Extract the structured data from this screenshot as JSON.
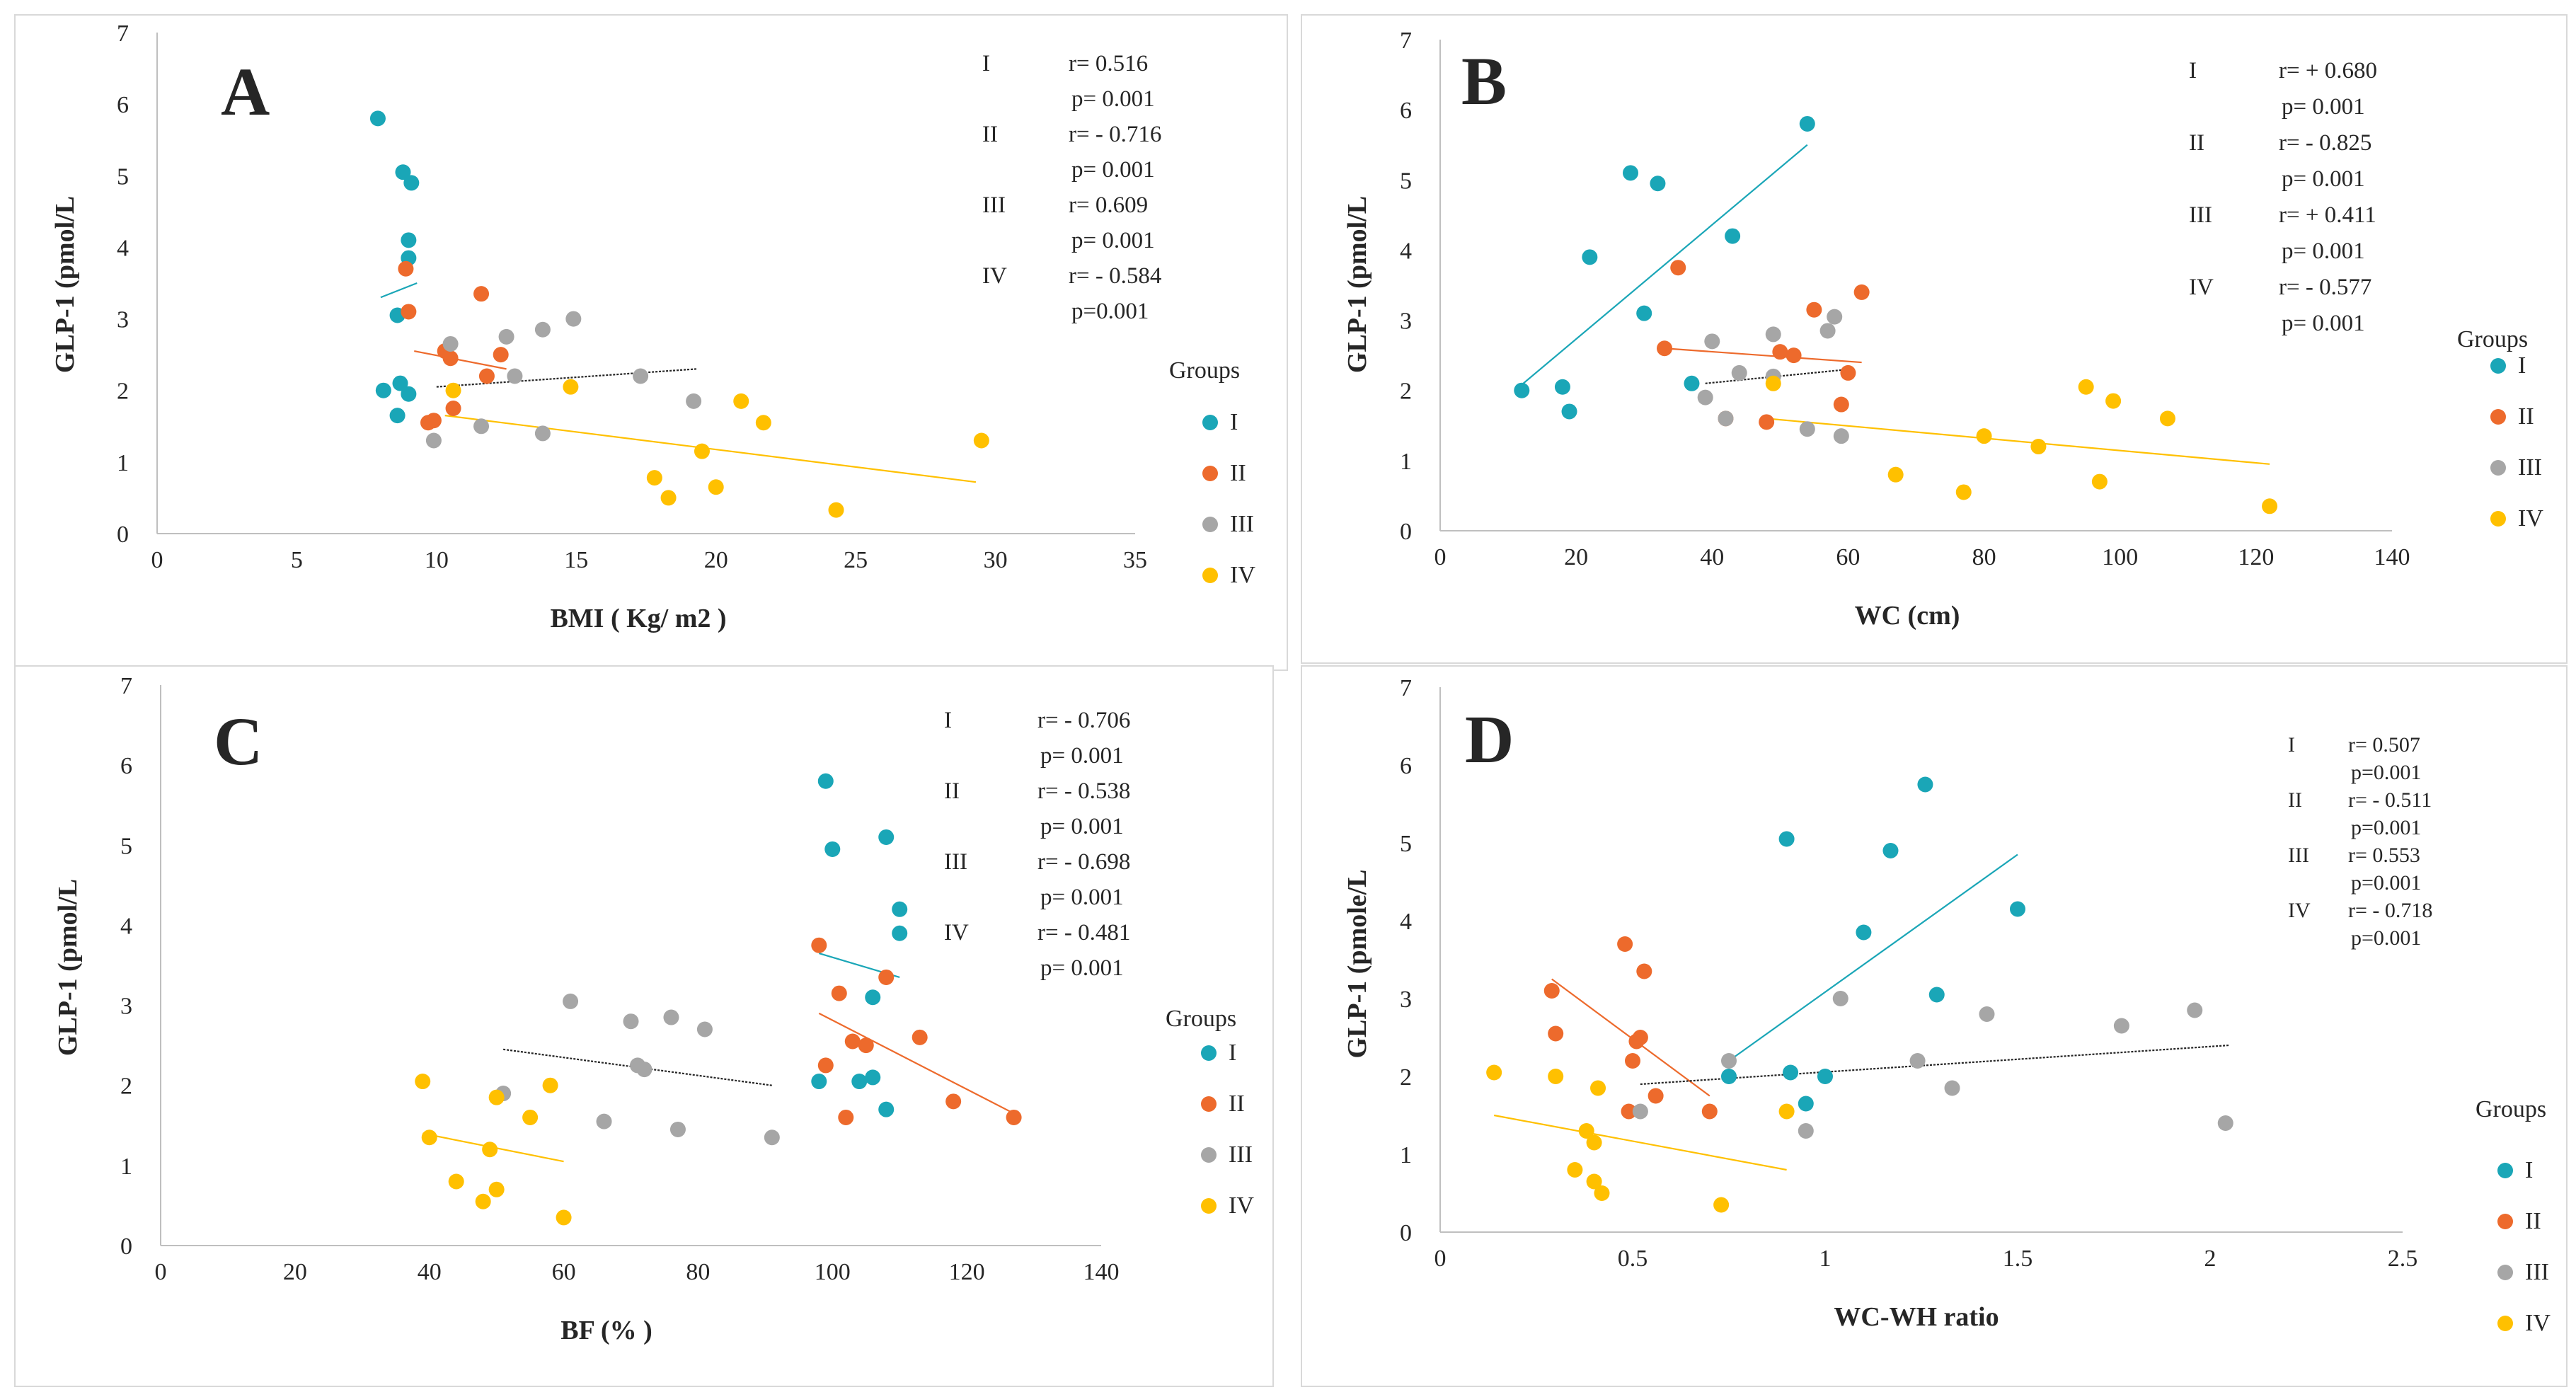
{
  "colors": {
    "I": "#1aa6b7",
    "II": "#ed6a2c",
    "III": "#a6a6a6",
    "IV": "#ffc000",
    "axis": "#bfbfbf",
    "text": "#262626"
  },
  "legend_title": "Groups",
  "chart_data": [
    {
      "type": "scatter",
      "panel_label": "A",
      "xlabel": "BMI ( Kg/ m2 )",
      "ylabel": "GLP-1 (pmol/L",
      "xlim": [
        0,
        35
      ],
      "ylim": [
        0,
        7
      ],
      "xticks": [
        0,
        5,
        10,
        15,
        20,
        25,
        30,
        35
      ],
      "yticks": [
        0,
        1,
        2,
        3,
        4,
        5,
        6,
        7
      ],
      "legend": [
        "I",
        "II",
        "III",
        "IV"
      ],
      "stats": [
        {
          "group": "I",
          "r": "r= 0.516",
          "p": "p= 0.001"
        },
        {
          "group": "II",
          "r": "r= - 0.716",
          "p": "p= 0.001"
        },
        {
          "group": "III",
          "r": "r= 0.609",
          "p": "p= 0.001"
        },
        {
          "group": "IV",
          "r": "r= - 0.584",
          "p": "p=0.001"
        }
      ],
      "series": [
        {
          "name": "I",
          "points": [
            [
              7.9,
              5.8
            ],
            [
              8.8,
              5.05
            ],
            [
              9.1,
              4.9
            ],
            [
              9.0,
              4.1
            ],
            [
              9.0,
              3.85
            ],
            [
              8.6,
              3.05
            ],
            [
              8.7,
              2.1
            ],
            [
              8.1,
              2.0
            ],
            [
              9.0,
              1.95
            ],
            [
              8.6,
              1.65
            ]
          ],
          "trend": [
            [
              8.0,
              3.3
            ],
            [
              9.3,
              3.5
            ]
          ]
        },
        {
          "name": "II",
          "points": [
            [
              8.9,
              3.7
            ],
            [
              9.0,
              3.1
            ],
            [
              11.6,
              3.35
            ],
            [
              10.3,
              2.55
            ],
            [
              10.5,
              2.45
            ],
            [
              12.3,
              2.5
            ],
            [
              11.8,
              2.2
            ],
            [
              10.6,
              1.75
            ],
            [
              9.7,
              1.55
            ],
            [
              9.9,
              1.58
            ]
          ],
          "trend": [
            [
              9.2,
              2.55
            ],
            [
              12.5,
              2.3
            ]
          ]
        },
        {
          "name": "III",
          "points": [
            [
              10.5,
              2.65
            ],
            [
              12.5,
              2.75
            ],
            [
              13.8,
              2.85
            ],
            [
              14.9,
              3.0
            ],
            [
              12.8,
              2.2
            ],
            [
              17.3,
              2.2
            ],
            [
              19.2,
              1.85
            ],
            [
              11.6,
              1.5
            ],
            [
              13.8,
              1.4
            ],
            [
              9.9,
              1.3
            ]
          ],
          "trend": [
            [
              10.0,
              2.05
            ],
            [
              19.3,
              2.3
            ]
          ]
        },
        {
          "name": "IV",
          "points": [
            [
              10.6,
              2.0
            ],
            [
              14.8,
              2.05
            ],
            [
              20.9,
              1.85
            ],
            [
              21.7,
              1.55
            ],
            [
              29.5,
              1.3
            ],
            [
              19.5,
              1.15
            ],
            [
              17.8,
              0.78
            ],
            [
              18.3,
              0.5
            ],
            [
              20.0,
              0.65
            ],
            [
              24.3,
              0.33
            ]
          ],
          "trend": [
            [
              10.3,
              1.65
            ],
            [
              29.3,
              0.72
            ]
          ]
        }
      ]
    },
    {
      "type": "scatter",
      "panel_label": "B",
      "xlabel": "WC (cm)",
      "ylabel": "GLP-1 (pmol/L",
      "xlim": [
        0,
        140
      ],
      "ylim": [
        0,
        7
      ],
      "xticks": [
        0,
        20,
        40,
        60,
        80,
        100,
        120,
        140
      ],
      "yticks": [
        0,
        1,
        2,
        3,
        4,
        5,
        6,
        7
      ],
      "legend": [
        "I",
        "II",
        "III",
        "IV"
      ],
      "stats": [
        {
          "group": "I",
          "r": "r= + 0.680",
          "p": "p= 0.001"
        },
        {
          "group": "II",
          "r": "r= - 0.825",
          "p": "p= 0.001"
        },
        {
          "group": "III",
          "r": "r= + 0.411",
          "p": "p= 0.001"
        },
        {
          "group": "IV",
          "r": "r= - 0.577",
          "p": "p= 0.001"
        }
      ],
      "series": [
        {
          "name": "I",
          "points": [
            [
              54,
              5.8
            ],
            [
              28,
              5.1
            ],
            [
              32,
              4.95
            ],
            [
              22,
              3.9
            ],
            [
              43,
              4.2
            ],
            [
              30,
              3.1
            ],
            [
              37,
              2.1
            ],
            [
              12,
              2.0
            ],
            [
              18,
              2.05
            ],
            [
              19,
              1.7
            ]
          ],
          "trend": [
            [
              11,
              2.0
            ],
            [
              54,
              5.5
            ]
          ]
        },
        {
          "name": "II",
          "points": [
            [
              35,
              3.75
            ],
            [
              55,
              3.15
            ],
            [
              62,
              3.4
            ],
            [
              33,
              2.6
            ],
            [
              50,
              2.55
            ],
            [
              52,
              2.5
            ],
            [
              60,
              2.25
            ],
            [
              42,
              1.6
            ],
            [
              48,
              1.55
            ],
            [
              59,
              1.8
            ]
          ],
          "trend": [
            [
              33,
              2.6
            ],
            [
              62,
              2.4
            ]
          ]
        },
        {
          "name": "III",
          "points": [
            [
              40,
              2.7
            ],
            [
              49,
              2.8
            ],
            [
              58,
              3.05
            ],
            [
              57,
              2.85
            ],
            [
              44,
              2.25
            ],
            [
              49,
              2.2
            ],
            [
              39,
              1.9
            ],
            [
              42,
              1.6
            ],
            [
              54,
              1.45
            ],
            [
              59,
              1.35
            ]
          ],
          "trend": [
            [
              39,
              2.1
            ],
            [
              60,
              2.3
            ]
          ]
        },
        {
          "name": "IV",
          "points": [
            [
              49,
              2.1
            ],
            [
              95,
              2.05
            ],
            [
              99,
              1.85
            ],
            [
              107,
              1.6
            ],
            [
              80,
              1.35
            ],
            [
              88,
              1.2
            ],
            [
              67,
              0.8
            ],
            [
              77,
              0.55
            ],
            [
              97,
              0.7
            ],
            [
              122,
              0.35
            ]
          ],
          "trend": [
            [
              48,
              1.6
            ],
            [
              122,
              0.95
            ]
          ]
        }
      ]
    },
    {
      "type": "scatter",
      "panel_label": "C",
      "xlabel": "BF (% )",
      "ylabel": "GLP-1 (pmol/L",
      "xlim": [
        0,
        140
      ],
      "ylim": [
        0,
        7
      ],
      "xticks": [
        0,
        20,
        40,
        60,
        80,
        100,
        120,
        140
      ],
      "yticks": [
        0,
        1,
        2,
        3,
        4,
        5,
        6,
        7
      ],
      "legend": [
        "I",
        "II",
        "III",
        "IV"
      ],
      "stats": [
        {
          "group": "I",
          "r": "r= - 0.706",
          "p": "p= 0.001"
        },
        {
          "group": "II",
          "r": "r= - 0.538",
          "p": "p= 0.001"
        },
        {
          "group": "III",
          "r": "r= - 0.698",
          "p": "p= 0.001"
        },
        {
          "group": "IV",
          "r": "r= - 0.481",
          "p": "p= 0.001"
        }
      ],
      "series": [
        {
          "name": "I",
          "points": [
            [
              99,
              5.8
            ],
            [
              100,
              4.95
            ],
            [
              108,
              5.1
            ],
            [
              110,
              4.2
            ],
            [
              110,
              3.9
            ],
            [
              106,
              3.1
            ],
            [
              98,
              2.05
            ],
            [
              104,
              2.05
            ],
            [
              106,
              2.1
            ],
            [
              108,
              1.7
            ]
          ],
          "trend": [
            [
              98,
              3.65
            ],
            [
              110,
              3.35
            ]
          ]
        },
        {
          "name": "II",
          "points": [
            [
              98,
              3.75
            ],
            [
              101,
              3.15
            ],
            [
              108,
              3.35
            ],
            [
              113,
              2.6
            ],
            [
              103,
              2.55
            ],
            [
              105,
              2.5
            ],
            [
              99,
              2.25
            ],
            [
              118,
              1.8
            ],
            [
              127,
              1.6
            ],
            [
              102,
              1.6
            ]
          ],
          "trend": [
            [
              98,
              2.9
            ],
            [
              127,
              1.65
            ]
          ]
        },
        {
          "name": "III",
          "points": [
            [
              61,
              3.05
            ],
            [
              70,
              2.8
            ],
            [
              76,
              2.85
            ],
            [
              81,
              2.7
            ],
            [
              72,
              2.2
            ],
            [
              51,
              1.9
            ],
            [
              66,
              1.55
            ],
            [
              77,
              1.45
            ],
            [
              91,
              1.35
            ],
            [
              71,
              2.25
            ]
          ],
          "trend": [
            [
              51,
              2.45
            ],
            [
              91,
              2.0
            ]
          ]
        },
        {
          "name": "IV",
          "points": [
            [
              39,
              2.05
            ],
            [
              58,
              2.0
            ],
            [
              50,
              1.85
            ],
            [
              55,
              1.6
            ],
            [
              40,
              1.35
            ],
            [
              49,
              1.2
            ],
            [
              44,
              0.8
            ],
            [
              50,
              0.7
            ],
            [
              48,
              0.55
            ],
            [
              60,
              0.35
            ]
          ],
          "trend": [
            [
              39,
              1.4
            ],
            [
              60,
              1.05
            ]
          ]
        }
      ]
    },
    {
      "type": "scatter",
      "panel_label": "D",
      "xlabel": "WC-WH ratio",
      "ylabel": "GLP-1 (pmole/L",
      "xlim": [
        0,
        2.5
      ],
      "ylim": [
        0,
        7
      ],
      "xticks": [
        0,
        0.5,
        1,
        1.5,
        2,
        2.5
      ],
      "yticks": [
        0,
        1,
        2,
        3,
        4,
        5,
        6,
        7
      ],
      "legend": [
        "I",
        "II",
        "III",
        "IV"
      ],
      "stats": [
        {
          "group": "I",
          "r": "r= 0.507",
          "p": "p=0.001"
        },
        {
          "group": "II",
          "r": "r= - 0.511",
          "p": "p=0.001"
        },
        {
          "group": "III",
          "r": "r= 0.553",
          "p": "p=0.001"
        },
        {
          "group": "IV",
          "r": "r= - 0.718",
          "p": "p=0.001"
        }
      ],
      "series": [
        {
          "name": "I",
          "points": [
            [
              1.26,
              5.75
            ],
            [
              0.9,
              5.05
            ],
            [
              1.17,
              4.9
            ],
            [
              1.5,
              4.15
            ],
            [
              1.1,
              3.85
            ],
            [
              1.29,
              3.05
            ],
            [
              0.75,
              2.0
            ],
            [
              0.91,
              2.05
            ],
            [
              1.0,
              2.0
            ],
            [
              0.95,
              1.65
            ]
          ],
          "trend": [
            [
              0.75,
              2.2
            ],
            [
              1.5,
              4.85
            ]
          ]
        },
        {
          "name": "II",
          "points": [
            [
              0.48,
              3.7
            ],
            [
              0.29,
              3.1
            ],
            [
              0.53,
              3.35
            ],
            [
              0.3,
              2.55
            ],
            [
              0.52,
              2.5
            ],
            [
              0.51,
              2.45
            ],
            [
              0.5,
              2.2
            ],
            [
              0.56,
              1.75
            ],
            [
              0.49,
              1.55
            ],
            [
              0.7,
              1.55
            ]
          ],
          "trend": [
            [
              0.29,
              3.25
            ],
            [
              0.7,
              1.75
            ]
          ]
        },
        {
          "name": "III",
          "points": [
            [
              1.04,
              3.0
            ],
            [
              1.42,
              2.8
            ],
            [
              1.77,
              2.65
            ],
            [
              1.96,
              2.85
            ],
            [
              0.75,
              2.2
            ],
            [
              1.24,
              2.2
            ],
            [
              1.33,
              1.85
            ],
            [
              0.52,
              1.55
            ],
            [
              0.95,
              1.3
            ],
            [
              2.04,
              1.4
            ]
          ],
          "trend": [
            [
              0.52,
              1.9
            ],
            [
              2.05,
              2.4
            ]
          ]
        },
        {
          "name": "IV",
          "points": [
            [
              0.14,
              2.05
            ],
            [
              0.3,
              2.0
            ],
            [
              0.41,
              1.85
            ],
            [
              0.9,
              1.55
            ],
            [
              0.38,
              1.3
            ],
            [
              0.4,
              1.15
            ],
            [
              0.35,
              0.8
            ],
            [
              0.4,
              0.65
            ],
            [
              0.42,
              0.5
            ],
            [
              0.73,
              0.35
            ]
          ],
          "trend": [
            [
              0.14,
              1.5
            ],
            [
              0.9,
              0.8
            ]
          ]
        }
      ]
    }
  ]
}
